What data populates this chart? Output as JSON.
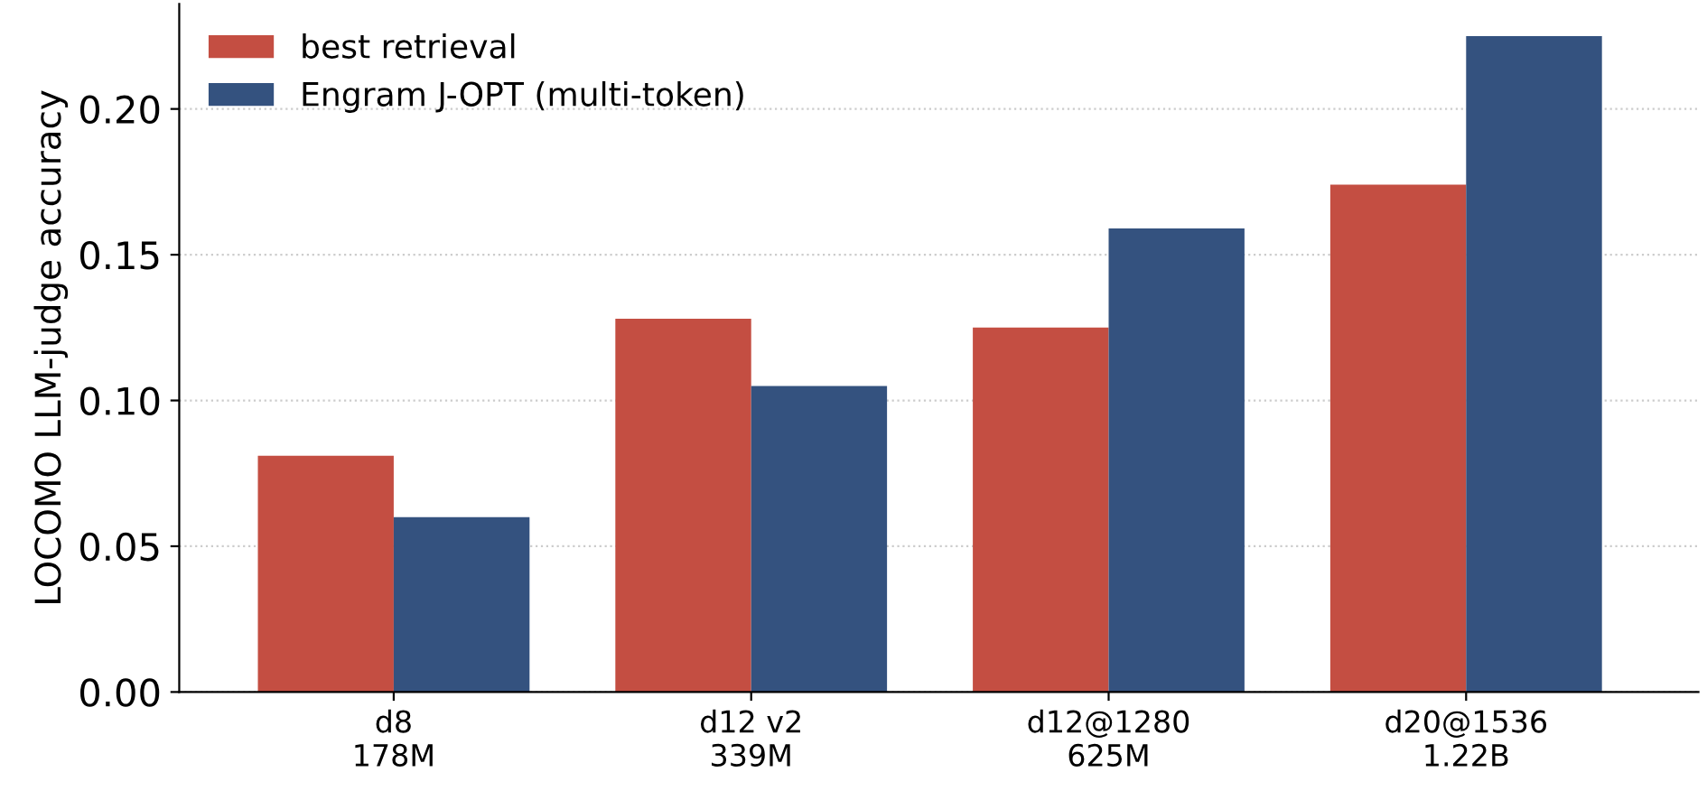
{
  "chart_data": {
    "type": "bar",
    "ylabel": "LOCOMO LLM-judge accuracy",
    "categories": [
      "d8\n178M",
      "d12 v2\n339M",
      "d12@1280\n625M",
      "d20@1536\n1.22B"
    ],
    "series": [
      {
        "name": "best retrieval",
        "color": "#c44e42",
        "values": [
          0.081,
          0.128,
          0.125,
          0.174
        ]
      },
      {
        "name": "Engram J-OPT (multi-token)",
        "color": "#34527f",
        "values": [
          0.06,
          0.105,
          0.159,
          0.225
        ]
      }
    ],
    "ylim": [
      0,
      0.236
    ],
    "yticks": [
      {
        "value": 0,
        "label": "0.00"
      },
      {
        "value": 0.05,
        "label": "0.05"
      },
      {
        "value": 0.1,
        "label": "0.10"
      },
      {
        "value": 0.15,
        "label": "0.15"
      },
      {
        "value": 0.2,
        "label": "0.20"
      }
    ],
    "grid": "y",
    "legend": "top left"
  }
}
